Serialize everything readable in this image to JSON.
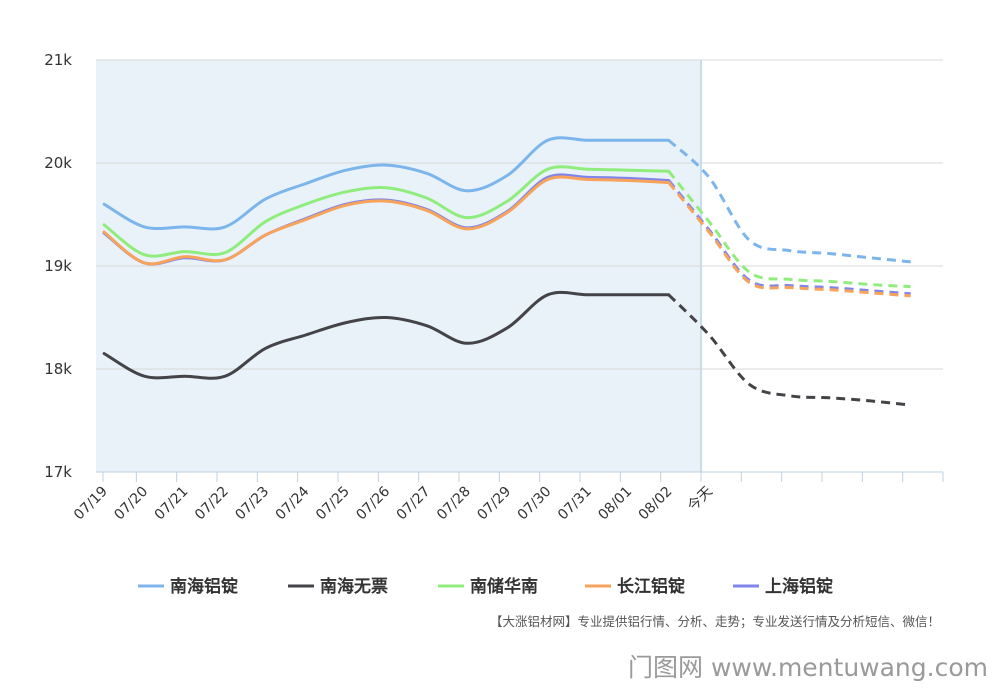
{
  "chart_data": {
    "type": "line",
    "title": "",
    "xlabel": "",
    "ylabel": "",
    "categories": [
      "07/19",
      "07/20",
      "07/21",
      "07/22",
      "07/23",
      "07/24",
      "07/25",
      "07/26",
      "07/27",
      "07/28",
      "07/29",
      "07/30",
      "07/31",
      "08/01",
      "08/02",
      "今天",
      "",
      "",
      "",
      "",
      ""
    ],
    "ylim": [
      17000,
      21000
    ],
    "yticks": [
      {
        "value": 17000,
        "label": "17k"
      },
      {
        "value": 18000,
        "label": "18k"
      },
      {
        "value": 19000,
        "label": "19k"
      },
      {
        "value": 20000,
        "label": "20k"
      },
      {
        "value": 21000,
        "label": "21k"
      }
    ],
    "grid": true,
    "highlight_range": [
      "07/19",
      "今天"
    ],
    "forecast_from": "08/02",
    "legend_position": "bottom",
    "series": [
      {
        "name": "南海铝锭",
        "color": "#7cb5ec",
        "values": [
          19600,
          19380,
          19380,
          19380,
          19650,
          19800,
          19930,
          19980,
          19900,
          19730,
          19880,
          20220,
          20220,
          20220,
          20220,
          19860,
          19250,
          19150,
          19120,
          19080,
          19040
        ]
      },
      {
        "name": "南海无票",
        "color": "#434348",
        "values": [
          18150,
          17930,
          17930,
          17930,
          18200,
          18330,
          18450,
          18500,
          18420,
          18250,
          18400,
          18720,
          18720,
          18720,
          18720,
          18330,
          17850,
          17740,
          17720,
          17690,
          17650
        ]
      },
      {
        "name": "南储华南",
        "color": "#90ed7d",
        "values": [
          19400,
          19110,
          19140,
          19130,
          19430,
          19600,
          19720,
          19760,
          19660,
          19470,
          19630,
          19940,
          19940,
          19930,
          19920,
          19430,
          18940,
          18870,
          18850,
          18820,
          18800
        ]
      },
      {
        "name": "长江铝锭",
        "color": "#f7a35c",
        "values": [
          19330,
          19030,
          19090,
          19060,
          19300,
          19450,
          19590,
          19630,
          19540,
          19360,
          19520,
          19840,
          19840,
          19830,
          19810,
          19330,
          18840,
          18790,
          18770,
          18740,
          18710
        ]
      },
      {
        "name": "上海铝锭",
        "color": "#8085e9",
        "values": [
          19320,
          19030,
          19080,
          19060,
          19300,
          19460,
          19600,
          19640,
          19550,
          19370,
          19530,
          19860,
          19860,
          19850,
          19830,
          19350,
          18860,
          18810,
          18790,
          18760,
          18730
        ]
      }
    ]
  },
  "footnote": "【大涨铝材网】专业提供铝行情、分析、走势；专业发送行情及分析短信、微信！",
  "watermark": "门图网 www.mentuwang.com"
}
